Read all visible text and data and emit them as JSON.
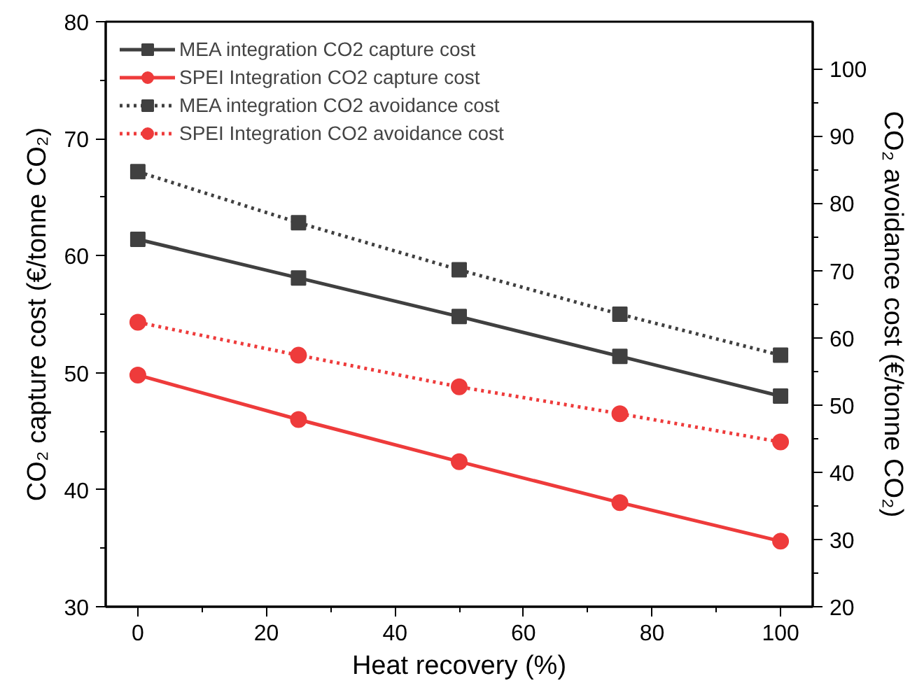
{
  "chart_data": {
    "type": "line",
    "xlabel": "Heat recovery (%)",
    "ylabel": "CO₂ capture cost (€/tonne CO₂)",
    "y2label": "CO₂ avoidance cost (€/tonne CO₂)",
    "x": [
      0,
      25,
      50,
      75,
      100
    ],
    "series": [
      {
        "name": "MEA integration CO2 capture cost",
        "color": "#404040",
        "values": [
          61.4,
          58.1,
          54.8,
          51.4,
          48.0
        ],
        "marker": "square",
        "line_style": "solid"
      },
      {
        "name": "SPEI Integration CO2 capture cost",
        "color": "#ee3b3b",
        "values": [
          49.8,
          46.0,
          42.4,
          38.9,
          35.6
        ],
        "marker": "circle",
        "line_style": "solid"
      },
      {
        "name": "MEA integration CO2 avoidance cost",
        "color": "#404040",
        "values": [
          84.7,
          77.1,
          70.1,
          63.5,
          57.4
        ],
        "marker": "square",
        "line_style": "dotted",
        "axis": "y2"
      },
      {
        "name": "SPEI Integration CO2 avoidance cost",
        "color": "#ee3b3b",
        "values": [
          62.3,
          57.4,
          52.7,
          48.7,
          44.5
        ],
        "marker": "circle",
        "line_style": "dotted",
        "axis": "y2"
      }
    ],
    "xlim": [
      -5,
      105
    ],
    "xticks": [
      0,
      20,
      40,
      60,
      80,
      100
    ],
    "ylim": [
      30,
      80
    ],
    "yticks": [
      30,
      40,
      50,
      60,
      70,
      80
    ],
    "y2lim": [
      20,
      107
    ],
    "y2ticks": [
      20,
      30,
      40,
      50,
      60,
      70,
      80,
      90,
      100
    ],
    "grid": false,
    "legend": "top left"
  }
}
